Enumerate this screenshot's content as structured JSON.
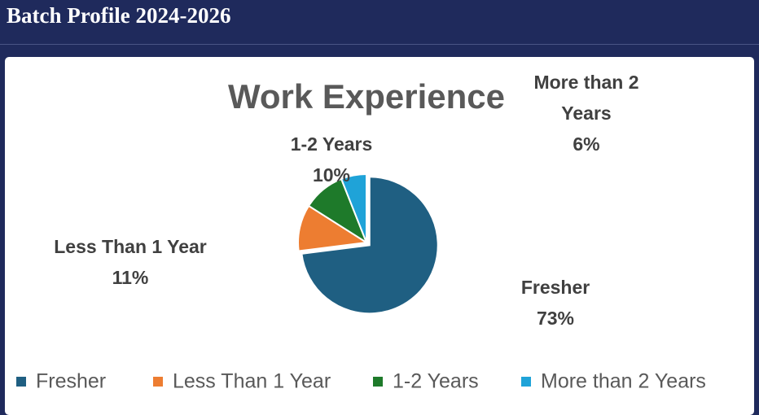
{
  "header": {
    "title": "Batch Profile 2024-2026"
  },
  "chart_data": {
    "type": "pie",
    "title": "Work Experience",
    "categories": [
      "Fresher",
      "Less Than 1 Year",
      "1-2 Years",
      "More than 2 Years"
    ],
    "values": [
      73,
      11,
      10,
      6
    ],
    "value_labels": [
      "73%",
      "11%",
      "10%",
      "6%"
    ],
    "colors": [
      "#1f5f82",
      "#ed7d31",
      "#1e7a2a",
      "#1fa3d8"
    ],
    "legend": "bottom"
  }
}
